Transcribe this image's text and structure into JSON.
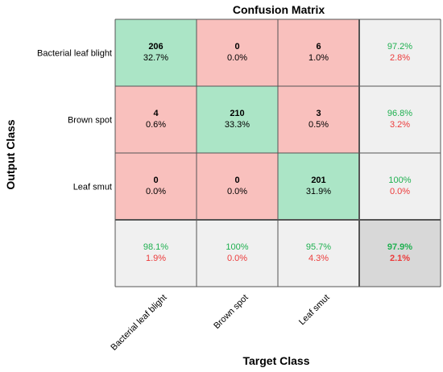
{
  "chart_data": {
    "type": "heatmap",
    "title": "Confusion Matrix",
    "xlabel": "Target Class",
    "ylabel": "Output Class",
    "classes": [
      "Bacterial leaf blight",
      "Brown spot",
      "Leaf smut"
    ],
    "matrix": [
      [
        206,
        0,
        6
      ],
      [
        4,
        210,
        3
      ],
      [
        0,
        0,
        201
      ]
    ],
    "matrix_percent": [
      [
        "32.7%",
        "0.0%",
        "1.0%"
      ],
      [
        "0.6%",
        "33.3%",
        "0.5%"
      ],
      [
        "0.0%",
        "0.0%",
        "31.9%"
      ]
    ],
    "row_summary": [
      {
        "correct": "97.2%",
        "incorrect": "2.8%"
      },
      {
        "correct": "96.8%",
        "incorrect": "3.2%"
      },
      {
        "correct": "100%",
        "incorrect": "0.0%"
      }
    ],
    "col_summary": [
      {
        "correct": "98.1%",
        "incorrect": "1.9%"
      },
      {
        "correct": "100%",
        "incorrect": "0.0%"
      },
      {
        "correct": "95.7%",
        "incorrect": "4.3%"
      }
    ],
    "overall": {
      "correct": "97.9%",
      "incorrect": "2.1%"
    },
    "colors": {
      "diagonal": "#abe5c6",
      "off_diagonal": "#f9c0bd",
      "summary": "#f0f0f0",
      "overall": "#d8d8d8",
      "correct_text": "#1fb050",
      "incorrect_text": "#ec3b3b",
      "grid": "#555555"
    }
  }
}
